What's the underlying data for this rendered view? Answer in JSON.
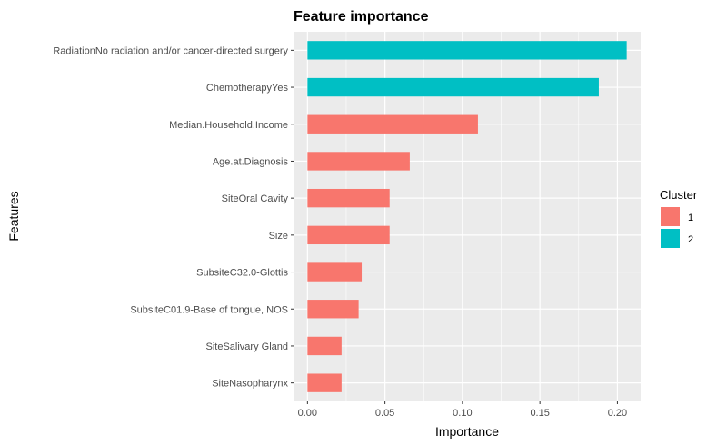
{
  "chart_data": {
    "type": "bar",
    "orientation": "horizontal",
    "title": "Feature importance",
    "xlabel": "Importance",
    "ylabel": "Features",
    "xlim": [
      -0.009,
      0.215
    ],
    "xticks": [
      0.0,
      0.05,
      0.1,
      0.15,
      0.2
    ],
    "xtick_labels": [
      "0.00",
      "0.05",
      "0.10",
      "0.15",
      "0.20"
    ],
    "grid": true,
    "legend": {
      "title": "Cluster",
      "position": "right",
      "entries": [
        {
          "label": "1",
          "color": "#F8766D"
        },
        {
          "label": "2",
          "color": "#00BFC4"
        }
      ]
    },
    "bars": [
      {
        "feature": "RadiationNo radiation and/or cancer-directed surgery",
        "value": 0.206,
        "cluster": "2"
      },
      {
        "feature": "ChemotherapyYes",
        "value": 0.188,
        "cluster": "2"
      },
      {
        "feature": "Median.Household.Income",
        "value": 0.11,
        "cluster": "1"
      },
      {
        "feature": "Age.at.Diagnosis",
        "value": 0.066,
        "cluster": "1"
      },
      {
        "feature": "SiteOral Cavity",
        "value": 0.053,
        "cluster": "1"
      },
      {
        "feature": "Size",
        "value": 0.053,
        "cluster": "1"
      },
      {
        "feature": "SubsiteC32.0-Glottis",
        "value": 0.035,
        "cluster": "1"
      },
      {
        "feature": "SubsiteC01.9-Base of tongue, NOS",
        "value": 0.033,
        "cluster": "1"
      },
      {
        "feature": "SiteSalivary Gland",
        "value": 0.022,
        "cluster": "1"
      },
      {
        "feature": "SiteNasopharynx",
        "value": 0.022,
        "cluster": "1"
      }
    ],
    "colors": {
      "panel_background": "#EBEBEB",
      "gridline": "#FFFFFF"
    }
  }
}
